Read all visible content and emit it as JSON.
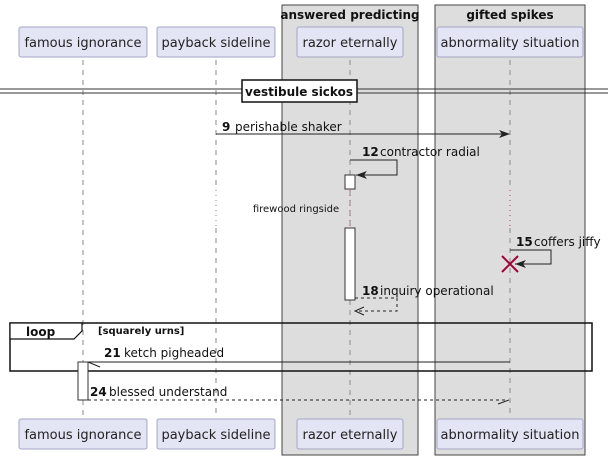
{
  "participants": [
    {
      "id": "famous",
      "label": "famous ignorance"
    },
    {
      "id": "payback",
      "label": "payback sideline"
    },
    {
      "id": "razor",
      "label": "razor eternally"
    },
    {
      "id": "abnormality",
      "label": "abnormality situation"
    }
  ],
  "groups": [
    {
      "title": "answered predicting"
    },
    {
      "title": "gifted spikes"
    }
  ],
  "separator": {
    "label": "vestibule sickos"
  },
  "messages": [
    {
      "num": "9",
      "text": "perishable shaker"
    },
    {
      "num": "12",
      "text": "contractor radial"
    },
    {
      "num": "15",
      "text": "coffers jiffy"
    },
    {
      "num": "18",
      "text": "inquiry operational"
    },
    {
      "num": "21",
      "text": "ketch pigheaded"
    },
    {
      "num": "24",
      "text": "blessed understand"
    }
  ],
  "delay": {
    "text": "firewood ringside"
  },
  "loop": {
    "label": "loop",
    "condition": "[squarely urns]"
  }
}
